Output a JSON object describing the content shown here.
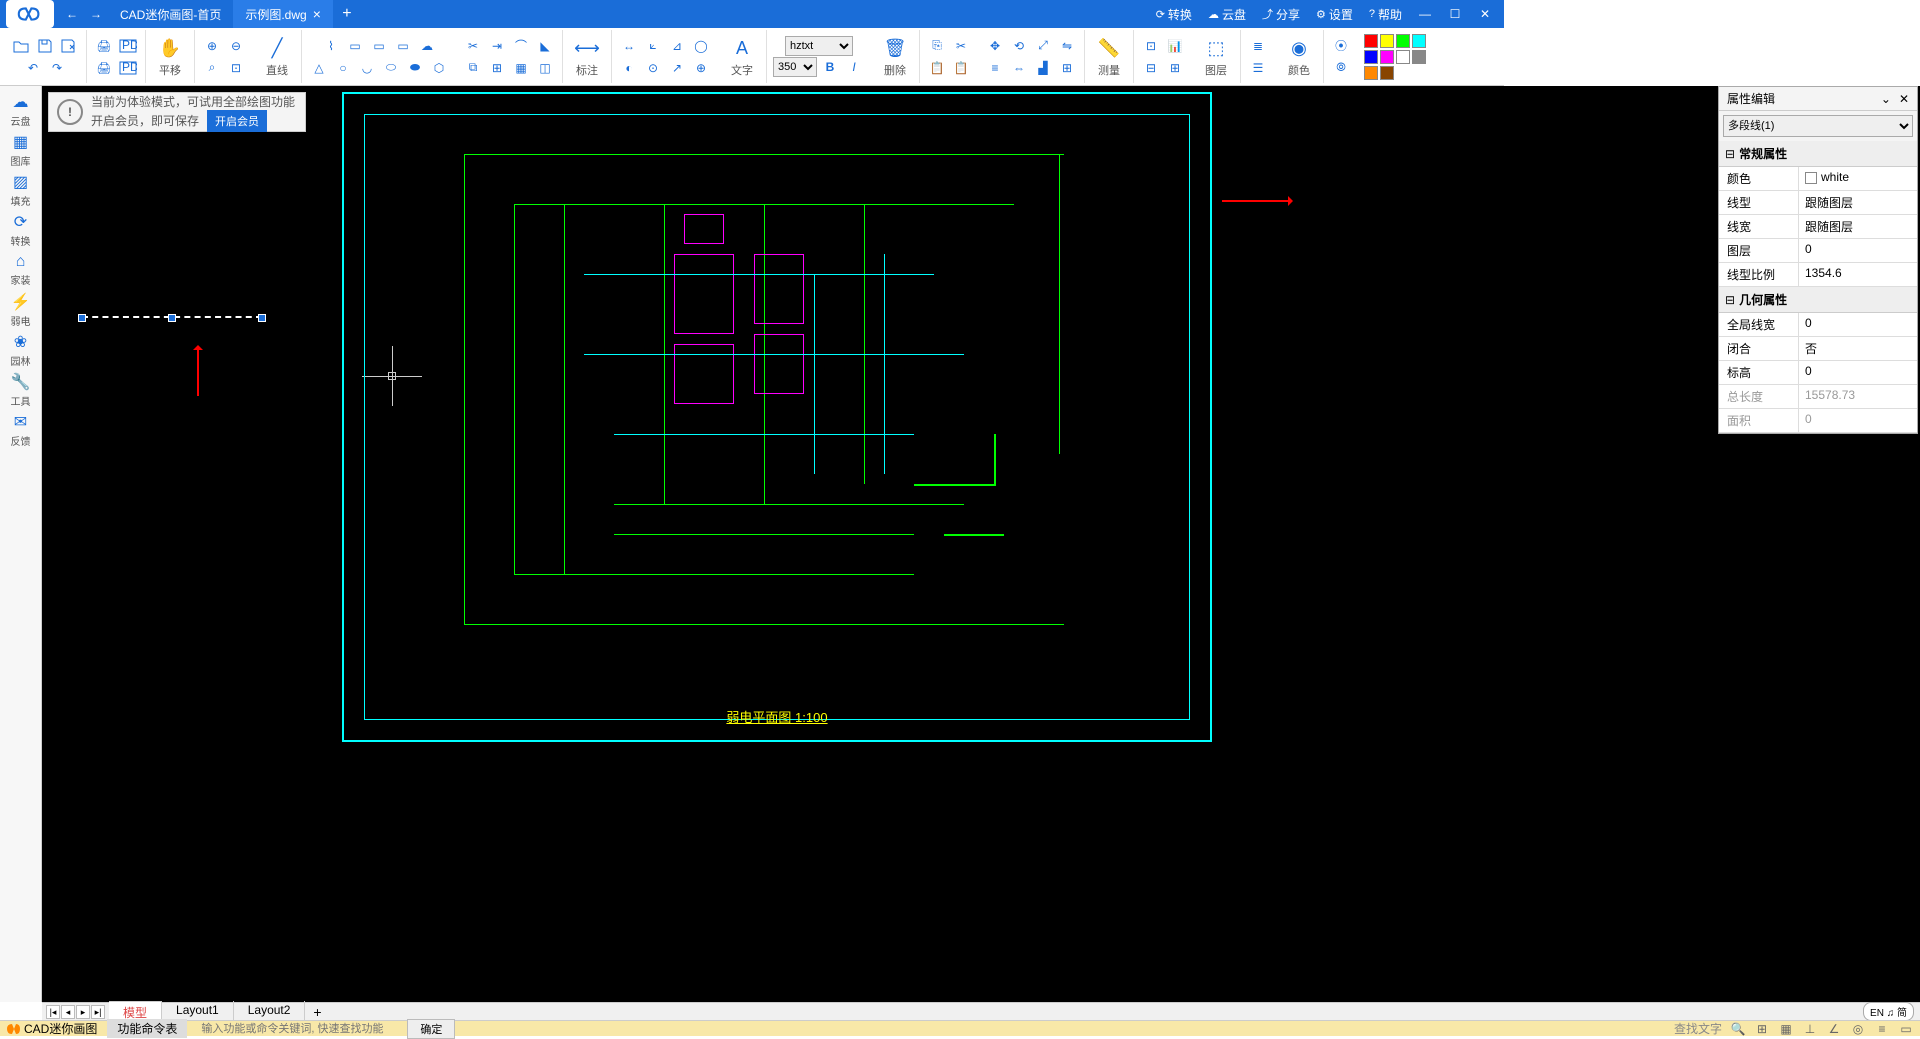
{
  "titlebar": {
    "tab_home": "CAD迷你画图-首页",
    "tab_active": "示例图.dwg",
    "links": {
      "convert": "转换",
      "cloud": "云盘",
      "share": "分享",
      "settings": "设置",
      "help": "帮助"
    }
  },
  "ribbon": {
    "pan": "平移",
    "line": "直线",
    "annotate": "标注",
    "text": "文字",
    "font": "hztxt",
    "fontsize": "350",
    "delete": "删除",
    "measure": "测量",
    "layer": "图层",
    "color": "颜色",
    "swatches": [
      "#ff0000",
      "#ffff00",
      "#00ff00",
      "#00ffff",
      "#0000ff",
      "#ff00ff",
      "#ffffff",
      "#888888",
      "#ff8800",
      "#884400"
    ]
  },
  "leftbar": [
    {
      "lbl": "云盘"
    },
    {
      "lbl": "图库"
    },
    {
      "lbl": "填充"
    },
    {
      "lbl": "转换"
    },
    {
      "lbl": "家装"
    },
    {
      "lbl": "弱电"
    },
    {
      "lbl": "园林"
    },
    {
      "lbl": "工具"
    },
    {
      "lbl": "反馈"
    }
  ],
  "trial": {
    "line1": "当前为体验模式，可试用全部绘图功能",
    "line2": "开启会员，即可保存",
    "btn": "开启会员"
  },
  "drawing": {
    "title": "弱电平面图    1:100"
  },
  "props": {
    "title": "属性编辑",
    "selector": "多段线(1)",
    "sec1": "常规属性",
    "rows1": [
      {
        "k": "颜色",
        "v": "white",
        "color": "#ffffff"
      },
      {
        "k": "线型",
        "v": "跟随图层"
      },
      {
        "k": "线宽",
        "v": "跟随图层"
      },
      {
        "k": "图层",
        "v": "0"
      },
      {
        "k": "线型比例",
        "v": "1354.6"
      }
    ],
    "sec2": "几何属性",
    "rows2": [
      {
        "k": "全局线宽",
        "v": "0"
      },
      {
        "k": "闭合",
        "v": "否"
      },
      {
        "k": "标高",
        "v": "0"
      },
      {
        "k": "总长度",
        "v": "15578.73",
        "dis": true
      },
      {
        "k": "面积",
        "v": "0",
        "dis": true
      }
    ]
  },
  "bottom": {
    "tabs": [
      "模型",
      "Layout1",
      "Layout2"
    ],
    "lang": "EN ♫ 简"
  },
  "status": {
    "app": "CAD迷你画图",
    "cmd": "功能命令表",
    "placeholder": "输入功能或命令关键词, 快速查找功能",
    "ok": "确定",
    "find": "查找文字"
  }
}
